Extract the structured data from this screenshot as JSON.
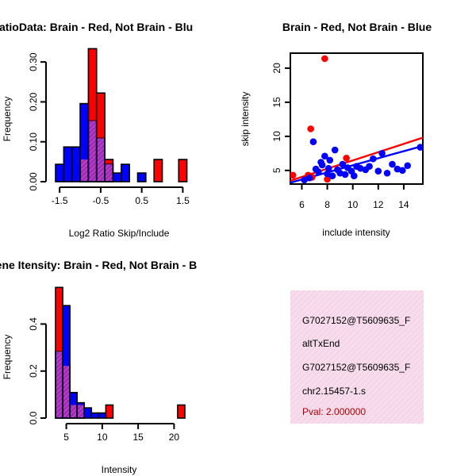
{
  "chart_data": [
    {
      "id": "ratio",
      "type": "bar",
      "title": "RatioData: Brain - Red, Not Brain - Blu",
      "xlabel": "Log2 Ratio Skip/Include",
      "ylabel": "Frequency",
      "xlim": [
        -1.6,
        1.55
      ],
      "ylim": [
        0,
        0.35
      ],
      "xticks": [
        -1.5,
        -0.5,
        0.5,
        1.5
      ],
      "xtick_labels": [
        "-1.5",
        "-0.5",
        "0.5",
        "1.5"
      ],
      "yticks": [
        0.0,
        0.1,
        0.2,
        0.3
      ],
      "ytick_labels": [
        "0.00",
        "0.10",
        "0.20",
        "0.30"
      ],
      "bin_width": 0.2,
      "series": [
        {
          "name": "Brain",
          "color": "#ff0000",
          "bins": [
            [
              -1.0,
              0.0556
            ],
            [
              -0.8,
              0.3333
            ],
            [
              -0.6,
              0.2222
            ],
            [
              -0.4,
              0.0556
            ],
            [
              0.8,
              0.0556
            ],
            [
              1.4,
              0.0556
            ]
          ]
        },
        {
          "name": "Not Brain",
          "color": "#0000ff",
          "bins": [
            [
              -1.6,
              0.0435
            ],
            [
              -1.4,
              0.087
            ],
            [
              -1.2,
              0.087
            ],
            [
              -1.0,
              0.1957
            ],
            [
              -0.8,
              0.1522
            ],
            [
              -0.6,
              0.1087
            ],
            [
              -0.4,
              0.0435
            ],
            [
              -0.2,
              0.0217
            ],
            [
              0.0,
              0.0435
            ],
            [
              0.4,
              0.0217
            ]
          ]
        }
      ]
    },
    {
      "id": "scatter",
      "type": "scatter",
      "title": "Brain - Red, Not Brain - Blue",
      "xlabel": "include intensity",
      "ylabel": "skip intensity",
      "xlim": [
        5.1,
        15.5
      ],
      "ylim": [
        3.0,
        22.2
      ],
      "xticks": [
        6,
        8,
        10,
        12,
        14
      ],
      "yticks": [
        5,
        10,
        15,
        20
      ],
      "series": [
        {
          "name": "Brain",
          "color": "#ff0000",
          "points": [
            [
              5.3,
              4.3
            ],
            [
              6.5,
              4.3
            ],
            [
              6.7,
              11.1
            ],
            [
              7.8,
              21.4
            ],
            [
              8.0,
              3.7
            ],
            [
              9.5,
              6.8
            ],
            [
              6.8,
              4.0
            ]
          ],
          "fit": {
            "x": [
              5.1,
              15.5
            ],
            "y": [
              3.5,
              9.8
            ]
          }
        },
        {
          "name": "Not Brain",
          "color": "#0000ff",
          "points": [
            [
              6.2,
              3.6
            ],
            [
              6.6,
              3.9
            ],
            [
              6.9,
              9.2
            ],
            [
              7.1,
              5.2
            ],
            [
              7.3,
              4.8
            ],
            [
              7.5,
              6.2
            ],
            [
              7.6,
              5.8
            ],
            [
              7.8,
              7.1
            ],
            [
              8.0,
              4.5
            ],
            [
              8.1,
              5.3
            ],
            [
              8.2,
              6.5
            ],
            [
              8.4,
              4.2
            ],
            [
              8.6,
              8.0
            ],
            [
              8.8,
              5.1
            ],
            [
              9.0,
              4.6
            ],
            [
              9.2,
              5.9
            ],
            [
              9.4,
              4.4
            ],
            [
              9.6,
              5.4
            ],
            [
              9.9,
              4.9
            ],
            [
              10.1,
              4.2
            ],
            [
              10.3,
              5.6
            ],
            [
              10.6,
              5.3
            ],
            [
              11.0,
              5.1
            ],
            [
              11.3,
              5.6
            ],
            [
              11.6,
              6.7
            ],
            [
              12.0,
              4.9
            ],
            [
              12.3,
              7.5
            ],
            [
              12.7,
              4.6
            ],
            [
              13.1,
              5.9
            ],
            [
              13.5,
              5.2
            ],
            [
              13.9,
              5.0
            ],
            [
              14.3,
              5.7
            ],
            [
              15.3,
              8.4
            ]
          ],
          "fit": {
            "x": [
              5.1,
              15.5
            ],
            "y": [
              3.2,
              8.6
            ]
          }
        }
      ]
    },
    {
      "id": "intensity",
      "type": "bar",
      "title": "Gene Itensity: Brain - Red, Not Brain - B",
      "xlabel": "Intensity",
      "ylabel": "Frequency",
      "xlim": [
        3.5,
        21.5
      ],
      "ylim": [
        0,
        0.56
      ],
      "xticks": [
        5,
        10,
        15,
        20
      ],
      "yticks": [
        0.0,
        0.2,
        0.4
      ],
      "ytick_labels": [
        "0.0",
        "0.2",
        "0.4"
      ],
      "bin_width": 1,
      "series": [
        {
          "name": "Brain",
          "color": "#ff0000",
          "bins": [
            [
              3.5,
              0.5556
            ],
            [
              4.5,
              0.2222
            ],
            [
              5.5,
              0.0556
            ],
            [
              6.5,
              0.0556
            ],
            [
              10.5,
              0.0556
            ],
            [
              20.5,
              0.0556
            ]
          ]
        },
        {
          "name": "Not Brain",
          "color": "#0000ff",
          "bins": [
            [
              3.5,
              0.2826
            ],
            [
              4.5,
              0.4783
            ],
            [
              5.5,
              0.1087
            ],
            [
              6.5,
              0.0652
            ],
            [
              7.5,
              0.0435
            ],
            [
              8.5,
              0.0217
            ],
            [
              9.5,
              0.0217
            ]
          ]
        }
      ]
    }
  ],
  "info_box": {
    "line1": "G7027152@T5609635_F",
    "line2": "altTxEnd",
    "line3": "G7027152@T5609635_F",
    "line4": "chr2.15457-1.s",
    "pval": "Pval: 2.000000"
  },
  "colors": {
    "red": "#ff0000",
    "blue": "#0000ff",
    "overlap": "#aa22aa",
    "info_bg": "#f7dcec",
    "pval": "#b00000"
  }
}
